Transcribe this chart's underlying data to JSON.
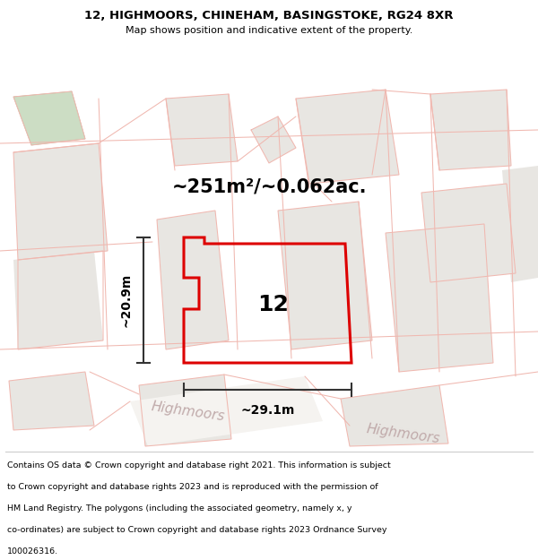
{
  "title": "12, HIGHMOORS, CHINEHAM, BASINGSTOKE, RG24 8XR",
  "subtitle": "Map shows position and indicative extent of the property.",
  "area_label": "~251m²/~0.062ac.",
  "plot_number": "12",
  "width_label": "~29.1m",
  "height_label": "~20.9m",
  "footer_lines": [
    "Contains OS data © Crown copyright and database right 2021. This information is subject",
    "to Crown copyright and database rights 2023 and is reproduced with the permission of",
    "HM Land Registry. The polygons (including the associated geometry, namely x, y",
    "co-ordinates) are subject to Crown copyright and database rights 2023 Ordnance Survey",
    "100026316."
  ],
  "map_bg": "#faf9f7",
  "building_fill": "#e8e6e2",
  "boundary_color": "#f0b8b0",
  "red_plot_color": "#dd0000",
  "green_fill": "#ccddc4",
  "dim_line_color": "#333333",
  "road_fill": "#f5f3f0",
  "street_label_color": "#c0aaaa",
  "title_fontsize": 9.5,
  "subtitle_fontsize": 8.0,
  "area_fontsize": 15,
  "plot_num_fontsize": 18,
  "dim_fontsize": 10,
  "footer_fontsize": 6.8
}
